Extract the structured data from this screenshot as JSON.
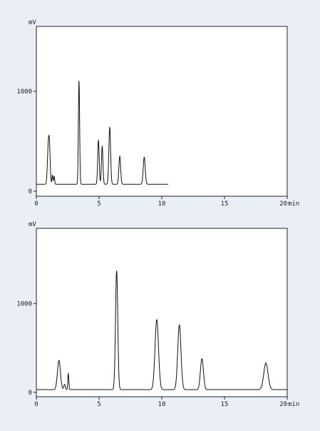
{
  "colors": {
    "background": "#e9eff5",
    "plot_background": "#ffffff",
    "trace": "#111111"
  },
  "chart_data": [
    {
      "type": "line",
      "title": "",
      "x_unit": "min",
      "y_unit": "mV",
      "xlim": [
        0,
        20
      ],
      "ylim": [
        -50,
        1650
      ],
      "x_ticks": [
        "0",
        "5",
        "10",
        "15",
        "20"
      ],
      "y_ticks": [
        "0",
        "1000"
      ],
      "grid": false,
      "baseline": 70,
      "run_end": 10.5,
      "peaks": [
        {
          "rt": 0.95,
          "height": 360,
          "width": 0.07
        },
        {
          "rt": 1.05,
          "height": 300,
          "width": 0.06
        },
        {
          "rt": 1.28,
          "height": 90,
          "width": 0.04
        },
        {
          "rt": 1.42,
          "height": 80,
          "width": 0.04
        },
        {
          "rt": 3.4,
          "height": 1030,
          "width": 0.05
        },
        {
          "rt": 4.95,
          "height": 440,
          "width": 0.06
        },
        {
          "rt": 5.25,
          "height": 380,
          "width": 0.06
        },
        {
          "rt": 5.85,
          "height": 570,
          "width": 0.07
        },
        {
          "rt": 6.65,
          "height": 280,
          "width": 0.07
        },
        {
          "rt": 8.6,
          "height": 270,
          "width": 0.08
        }
      ]
    },
    {
      "type": "line",
      "title": "",
      "x_unit": "min",
      "y_unit": "mV",
      "xlim": [
        0,
        20
      ],
      "ylim": [
        -50,
        1850
      ],
      "x_ticks": [
        "0",
        "5",
        "10",
        "15",
        "20"
      ],
      "y_ticks": [
        "0",
        "1000"
      ],
      "grid": false,
      "baseline": 30,
      "run_end": 20,
      "peaks": [
        {
          "rt": 1.8,
          "height": 330,
          "width": 0.12
        },
        {
          "rt": 2.25,
          "height": 60,
          "width": 0.06
        },
        {
          "rt": 2.55,
          "height": 180,
          "width": 0.04
        },
        {
          "rt": 6.4,
          "height": 1340,
          "width": 0.09
        },
        {
          "rt": 9.6,
          "height": 790,
          "width": 0.14
        },
        {
          "rt": 11.4,
          "height": 730,
          "width": 0.13
        },
        {
          "rt": 13.2,
          "height": 350,
          "width": 0.12
        },
        {
          "rt": 18.3,
          "height": 300,
          "width": 0.17
        }
      ]
    }
  ]
}
